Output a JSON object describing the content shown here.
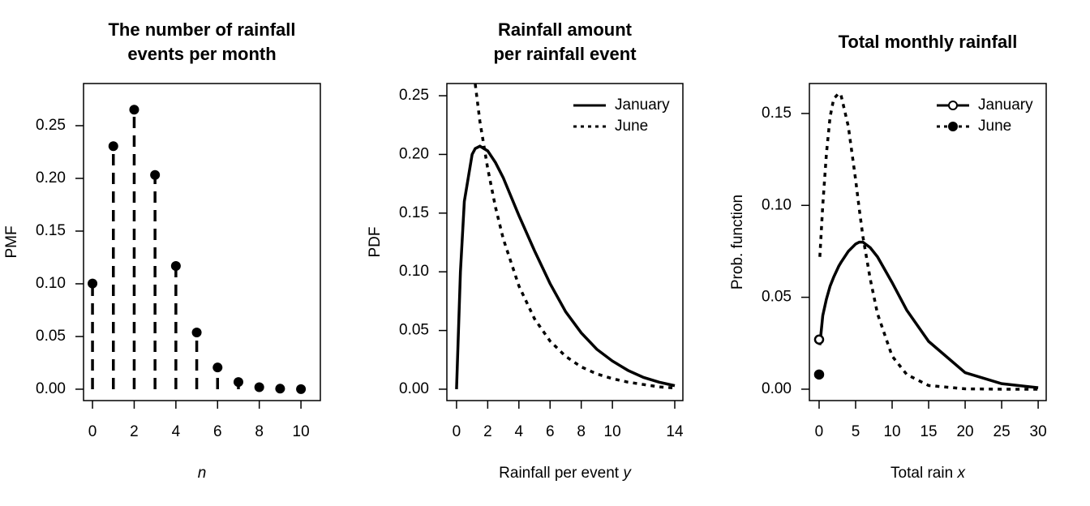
{
  "chart_data": [
    {
      "type": "stem",
      "title": [
        "The number of rainfall",
        "events per month"
      ],
      "xlabel": {
        "var": "n"
      },
      "ylabel": "PMF",
      "x": [
        0,
        1,
        2,
        3,
        4,
        5,
        6,
        7,
        8,
        9,
        10
      ],
      "values": [
        0.1003,
        0.2306,
        0.2652,
        0.2033,
        0.1169,
        0.0538,
        0.0206,
        0.0068,
        0.0019,
        0.0005,
        0.0001
      ],
      "color": "#000000",
      "xlim": [
        -0.43,
        10.93
      ],
      "xticks": [
        0,
        2,
        4,
        6,
        8,
        10
      ],
      "ylim": [
        -0.0108,
        0.29
      ],
      "yticks": [
        {
          "value": 0,
          "label": "0.00"
        },
        0.05,
        {
          "value": 0.1,
          "label": "0.10"
        },
        0.15,
        {
          "value": 0.2,
          "label": "0.20"
        },
        0.25
      ]
    },
    {
      "type": "line",
      "title": [
        "Rainfall amount",
        "per rainfall event"
      ],
      "xlabel": {
        "text": "Rainfall per event",
        "var": "y"
      },
      "ylabel": "PDF",
      "x": [
        0,
        0.25,
        0.5,
        1,
        1.2,
        1.5,
        2,
        2.5,
        3,
        4,
        5,
        6,
        7,
        8,
        9,
        10,
        11,
        12,
        13,
        14
      ],
      "series": [
        {
          "name": "January",
          "color": "#000000",
          "dash": "solid",
          "values": [
            0,
            0.1,
            0.16,
            0.2,
            0.205,
            0.207,
            0.203,
            0.193,
            0.18,
            0.148,
            0.118,
            0.09,
            0.066,
            0.048,
            0.034,
            0.024,
            0.016,
            0.01,
            0.006,
            0.003
          ]
        },
        {
          "name": "June",
          "color": "#000000",
          "dash": "dotted",
          "values": [
            null,
            null,
            null,
            null,
            0.26,
            0.228,
            0.188,
            0.155,
            0.128,
            0.088,
            0.06,
            0.041,
            0.028,
            0.019,
            0.013,
            0.009,
            0.006,
            0.004,
            0.002,
            0.001
          ]
        }
      ],
      "legend": "topright",
      "xlim": [
        -0.62,
        14.52
      ],
      "xticks": [
        0,
        2,
        4,
        6,
        8,
        10,
        14
      ],
      "ylim": [
        -0.0097,
        0.2604
      ],
      "yticks": [
        {
          "value": 0,
          "label": "0.00"
        },
        0.05,
        {
          "value": 0.1,
          "label": "0.10"
        },
        0.15,
        {
          "value": 0.2,
          "label": "0.20"
        },
        0.25
      ]
    },
    {
      "type": "line",
      "title": [
        "Total monthly rainfall"
      ],
      "xlabel": {
        "text": "Total rain",
        "var": "x"
      },
      "ylabel": "Prob. function",
      "x": [
        0.1,
        0.5,
        1,
        1.5,
        2,
        2.7,
        3,
        4,
        5,
        5.5,
        6,
        7,
        8,
        10,
        12,
        15,
        20,
        25,
        30
      ],
      "series": [
        {
          "name": "January",
          "color": "#000000",
          "dash": "solid",
          "marker": "open",
          "point": {
            "x": 0,
            "value": 0.027
          },
          "values": [
            0.024,
            0.04,
            0.049,
            0.056,
            0.061,
            0.067,
            0.069,
            0.075,
            0.079,
            0.08,
            0.08,
            0.077,
            0.072,
            0.058,
            0.043,
            0.026,
            0.009,
            0.003,
            0.0008
          ]
        },
        {
          "name": "June",
          "color": "#000000",
          "dash": "dotted",
          "marker": "filled",
          "point": {
            "x": 0,
            "value": 0.008
          },
          "values": [
            0.072,
            0.1,
            0.128,
            0.148,
            0.158,
            0.161,
            0.16,
            0.143,
            0.114,
            0.098,
            0.083,
            0.06,
            0.041,
            0.018,
            0.008,
            0.002,
            0.0002,
            0,
            0
          ]
        }
      ],
      "legend": "topright",
      "xlim": [
        -1.33,
        31.1
      ],
      "xticks": [
        0,
        5,
        10,
        15,
        20,
        25,
        30
      ],
      "ylim": [
        -0.0062,
        0.1663
      ],
      "yticks": [
        {
          "value": 0,
          "label": "0.00"
        },
        0.05,
        {
          "value": 0.1,
          "label": "0.10"
        },
        0.15
      ]
    }
  ]
}
